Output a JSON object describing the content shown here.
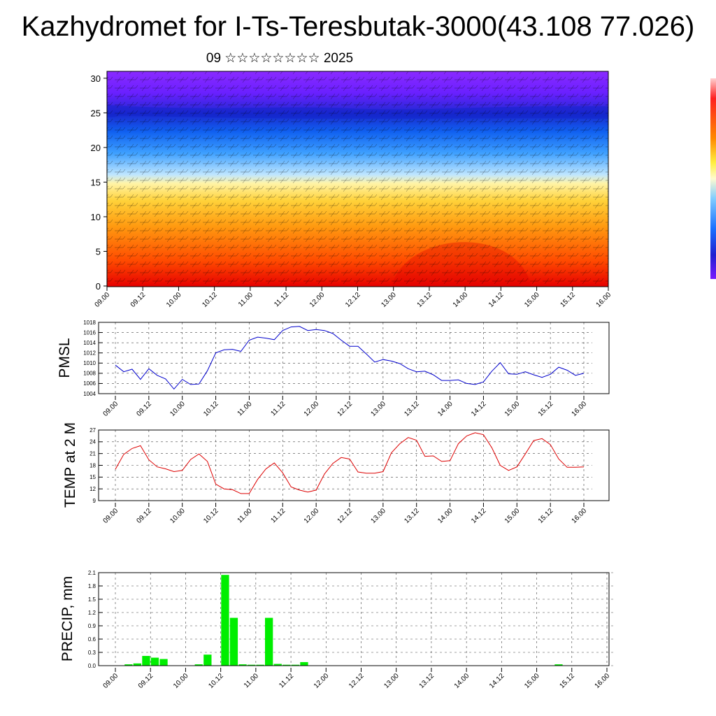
{
  "header": {
    "title": "Kazhydromet for I-Ts-Teresbutak-3000(43.108 77.026)",
    "subtitle": "09 ☆☆☆☆☆☆☆☆ 2025"
  },
  "time_ticks": [
    "09.00",
    "09.12",
    "10.00",
    "10.12",
    "11.00",
    "11.12",
    "12.00",
    "12.12",
    "13.00",
    "13.12",
    "14.00",
    "14.12",
    "15.00",
    "15.12",
    "16.00"
  ],
  "colors": {
    "pmsl_line": "#0000cc",
    "temp_line": "#dd0000",
    "precip_bar": "#00ee00",
    "cross_section_low": "#ff1a00",
    "cross_section_mid": "#ffe680",
    "cross_section_high": "#7a1aff"
  },
  "chart_data": [
    {
      "type": "heatmap",
      "name_hint": "vertical cross-section with wind barbs",
      "x_ticks": [
        "09.00",
        "09.12",
        "10.00",
        "10.12",
        "11.00",
        "11.12",
        "12.00",
        "12.12",
        "13.00",
        "13.12",
        "14.00",
        "14.12",
        "15.00",
        "15.12",
        "16.00"
      ],
      "y_ticks": [
        "0",
        "5",
        "10",
        "15",
        "20",
        "25",
        "30"
      ],
      "ylim": [
        0,
        31
      ]
    },
    {
      "type": "line",
      "ylabel": "PMSL",
      "ylim": [
        1004,
        1018
      ],
      "y_ticks": [
        "1004",
        "1006",
        "1008",
        "1010",
        "1012",
        "1014",
        "1016",
        "1018"
      ],
      "x_ticks": [
        "09.00",
        "09.12",
        "10.00",
        "10.12",
        "11.00",
        "11.12",
        "12.00",
        "12.12",
        "13.00",
        "13.12",
        "14.00",
        "14.12",
        "15.00",
        "15.12",
        "16.00"
      ],
      "values": [
        1009.6,
        1008.3,
        1008.8,
        1006.8,
        1008.9,
        1007.6,
        1006.9,
        1004.9,
        1006.8,
        1005.8,
        1005.9,
        1008.5,
        1012.0,
        1012.6,
        1012.7,
        1012.3,
        1014.5,
        1015.1,
        1014.9,
        1014.6,
        1016.4,
        1017.1,
        1017.2,
        1016.4,
        1016.6,
        1016.4,
        1015.8,
        1014.5,
        1013.3,
        1013.3,
        1011.8,
        1010.2,
        1010.7,
        1010.4,
        1009.9,
        1008.9,
        1008.3,
        1008.4,
        1007.7,
        1006.6,
        1006.6,
        1006.7,
        1006.0,
        1005.8,
        1006.3,
        1008.4,
        1010.1,
        1007.9,
        1007.8,
        1008.3,
        1007.7,
        1007.2,
        1007.8,
        1009.2,
        1008.6,
        1007.6,
        1008.0
      ]
    },
    {
      "type": "line",
      "ylabel": "TEMP at 2 M",
      "ylim": [
        9,
        27
      ],
      "y_ticks": [
        "9",
        "12",
        "15",
        "18",
        "21",
        "24",
        "27"
      ],
      "x_ticks": [
        "09.00",
        "09.12",
        "10.00",
        "10.12",
        "11.00",
        "11.12",
        "12.00",
        "12.12",
        "13.00",
        "13.12",
        "14.00",
        "14.12",
        "15.00",
        "15.12",
        "16.00"
      ],
      "values": [
        17.0,
        20.8,
        22.3,
        23.0,
        19.4,
        17.6,
        17.1,
        16.4,
        16.7,
        19.5,
        20.9,
        19.0,
        13.2,
        12.0,
        11.8,
        10.8,
        10.8,
        14.4,
        17.1,
        18.6,
        16.1,
        12.5,
        11.7,
        11.2,
        11.7,
        15.8,
        18.5,
        20.0,
        19.6,
        16.3,
        16.0,
        16.0,
        16.4,
        21.2,
        23.5,
        25.1,
        24.4,
        20.3,
        20.4,
        19.0,
        19.2,
        23.5,
        25.5,
        26.3,
        25.8,
        22.5,
        18.0,
        16.7,
        17.6,
        20.9,
        24.3,
        24.8,
        23.3,
        19.6,
        17.5,
        17.5,
        17.6
      ]
    },
    {
      "type": "bar",
      "ylabel": "PRECIP, mm",
      "ylim": [
        0,
        2.1
      ],
      "y_ticks": [
        "0.0",
        "0.3",
        "0.6",
        "0.9",
        "1.2",
        "1.5",
        "1.8",
        "2.1"
      ],
      "x_ticks": [
        "09.00",
        "09.12",
        "10.00",
        "10.12",
        "11.00",
        "11.12",
        "12.00",
        "12.12",
        "13.00",
        "13.12",
        "14.00",
        "14.12",
        "15.00",
        "15.12",
        "16.00"
      ],
      "values": [
        0,
        0.03,
        0.05,
        0.22,
        0.18,
        0.15,
        0,
        0,
        0,
        0.03,
        0.25,
        0,
        2.05,
        1.08,
        0.03,
        0.02,
        0.02,
        1.08,
        0.04,
        0.02,
        0.02,
        0.08,
        0,
        0,
        0,
        0,
        0,
        0,
        0,
        0,
        0,
        0,
        0,
        0,
        0,
        0,
        0,
        0,
        0,
        0,
        0,
        0,
        0,
        0,
        0,
        0,
        0,
        0,
        0,
        0,
        0.03,
        0,
        0,
        0,
        0,
        0
      ]
    }
  ],
  "panels": {
    "pmsl_label": "PMSL",
    "temp_label": "TEMP at 2 M",
    "precip_label": "PRECIP, mm"
  }
}
